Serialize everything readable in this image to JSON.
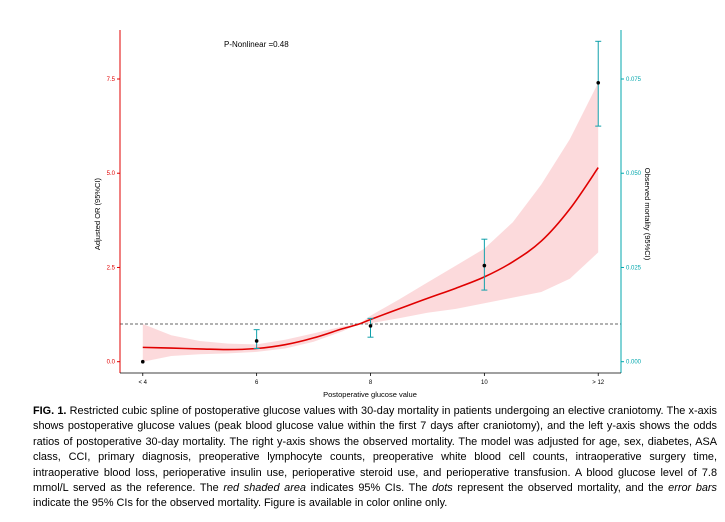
{
  "chart_data": {
    "type": "line",
    "title": "",
    "annotation": "P-Nonlinear =0.48",
    "xlabel": "Postoperative glucose value",
    "ylabel_left": "Adjusted OR (95%CI)",
    "ylabel_right": "Observed mortality (95%CI)",
    "x_categories": [
      "< 4",
      "6",
      "8",
      "10",
      "> 12"
    ],
    "x_positions": [
      4,
      6,
      8,
      10,
      12
    ],
    "xlim": [
      3.6,
      12.4
    ],
    "ylim_left": [
      -0.3,
      8.8
    ],
    "yticks_left": [
      0.0,
      2.5,
      5.0,
      7.5
    ],
    "ytick_labels_left": [
      "0.0",
      "2.5",
      "5.0",
      "7.5"
    ],
    "ylim_right": [
      -0.003,
      0.088
    ],
    "yticks_right": [
      0.0,
      0.025,
      0.05,
      0.075
    ],
    "ytick_labels_right": [
      "0.000",
      "0.025",
      "0.050",
      "0.075"
    ],
    "reference_line_or": 1.0,
    "spline_or": {
      "x": [
        4.0,
        4.5,
        5.0,
        5.5,
        6.0,
        6.5,
        7.0,
        7.5,
        7.8,
        8.0,
        8.5,
        9.0,
        9.5,
        10.0,
        10.5,
        11.0,
        11.5,
        12.0
      ],
      "y": [
        0.38,
        0.36,
        0.34,
        0.32,
        0.35,
        0.45,
        0.63,
        0.87,
        1.0,
        1.12,
        1.4,
        1.68,
        1.95,
        2.25,
        2.65,
        3.2,
        4.05,
        5.15
      ]
    },
    "spline_ci_lower": [
      0.0,
      0.15,
      0.2,
      0.22,
      0.26,
      0.35,
      0.53,
      0.8,
      1.0,
      1.02,
      1.15,
      1.3,
      1.4,
      1.55,
      1.7,
      1.85,
      2.2,
      2.9
    ],
    "spline_ci_upper": [
      1.0,
      0.7,
      0.55,
      0.48,
      0.46,
      0.58,
      0.75,
      0.93,
      1.0,
      1.22,
      1.65,
      2.1,
      2.55,
      3.0,
      3.7,
      4.7,
      5.9,
      7.4
    ],
    "observed_mortality": [
      {
        "x": 4,
        "y": 0.0,
        "lower": null,
        "upper": null
      },
      {
        "x": 6,
        "y": 0.0055,
        "lower": 0.0035,
        "upper": 0.0085
      },
      {
        "x": 8,
        "y": 0.0095,
        "lower": 0.0065,
        "upper": 0.0115
      },
      {
        "x": 10,
        "y": 0.0255,
        "lower": 0.019,
        "upper": 0.0325
      },
      {
        "x": 12,
        "y": 0.074,
        "lower": 0.0625,
        "upper": 0.085
      }
    ],
    "colors": {
      "spline": "#e00000",
      "ci_band": "#fbd4d6",
      "left_axis": "#e00000",
      "right_axis": "#00a7ad",
      "error_bar": "#10a0aa",
      "dots": "#000000",
      "reference": "#666666"
    },
    "grid": false
  },
  "caption": {
    "label": "FIG. 1.",
    "part1": " Restricted cubic spline of postoperative glucose values with 30-day mortality in patients undergoing an elective craniotomy. The x-axis shows postoperative glucose values (peak blood glucose value within the first 7 days after craniotomy), and the left y-axis shows the odds ratios of postoperative 30-day mortality. The right y-axis shows the observed mortality. The model was adjusted for age, sex, diabetes, ASA class, CCI, primary diagnosis, preoperative lymphocyte counts, preoperative white blood cell counts, intraoperative surgery time, intraoperative blood loss, perioperative insulin use, perioperative steroid use, and perioperative transfusion. A blood glucose level of 7.8 mmol/L served as the reference. The ",
    "italic1": "red shaded area",
    "part2": " indicates 95% CIs. The ",
    "italic2": "dots",
    "part3": " represent the observed mortality, and the ",
    "italic3": "error bars",
    "part4": " indicate the 95% CIs for the observed mortality. Figure is available in color online only."
  }
}
